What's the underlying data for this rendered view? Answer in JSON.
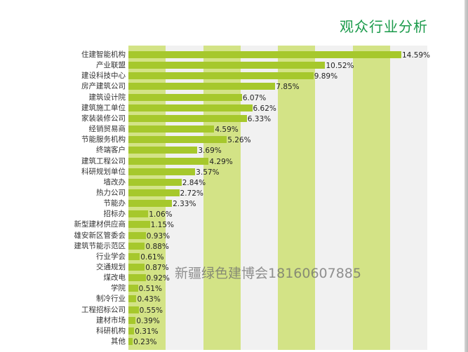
{
  "title": "观众行业分析",
  "watermark": {
    "text": "新疆绿色建博会",
    "phone": "18160607885"
  },
  "colors": {
    "title": "#1a9a4a",
    "bar": "#a6c82c",
    "band_green": "#d3e386",
    "band_gray": "#f1f1f1",
    "watermark": "#6e6e6e"
  },
  "chart_data": {
    "type": "bar",
    "orientation": "horizontal",
    "title": "观众行业分析",
    "xlabel": "",
    "ylabel": "",
    "unit": "%",
    "grid": "alternating vertical bands",
    "legend": "none",
    "categories": [
      "住建智能机构",
      "产业联盟",
      "建设科技中心",
      "房产建筑公司",
      "建筑设计院",
      "建筑施工单位",
      "家装装修公司",
      "经销贸易商",
      "节能服务机构",
      "终端客户",
      "建筑工程公司",
      "科研规划单位",
      "墙改办",
      "热力公司",
      "节能办",
      "招标办",
      "新型建材供应商",
      "雄安新区管委会",
      "建筑节能示范区",
      "行业学会",
      "交通规划",
      "煤改电",
      "学院",
      "制冷行业",
      "工程招标公司",
      "建材市场",
      "科研机构",
      "其他"
    ],
    "values": [
      14.59,
      10.52,
      9.89,
      7.85,
      6.07,
      6.62,
      6.33,
      4.59,
      5.26,
      3.69,
      4.29,
      3.57,
      2.84,
      2.72,
      2.33,
      1.06,
      1.15,
      0.93,
      0.88,
      0.61,
      0.87,
      0.92,
      0.51,
      0.43,
      0.55,
      0.39,
      0.31,
      0.23
    ],
    "value_labels": [
      "14.59%",
      "10.52%",
      "9.89%",
      "7.85%",
      "6.07%",
      "6.62%",
      "6.33%",
      "4.59%",
      "5.26%",
      "3.69%",
      "4.29%",
      "3.57%",
      "2.84%",
      "2.72%",
      "2.33%",
      "1.06%",
      "1.15%",
      "0.93%",
      "0.88%",
      "0.61%",
      "0.87%",
      "0.92%",
      "0.51%",
      "0.43%",
      "0.55%",
      "0.39%",
      "0.31%",
      "0.23%"
    ],
    "xlim": [
      0,
      16
    ]
  }
}
